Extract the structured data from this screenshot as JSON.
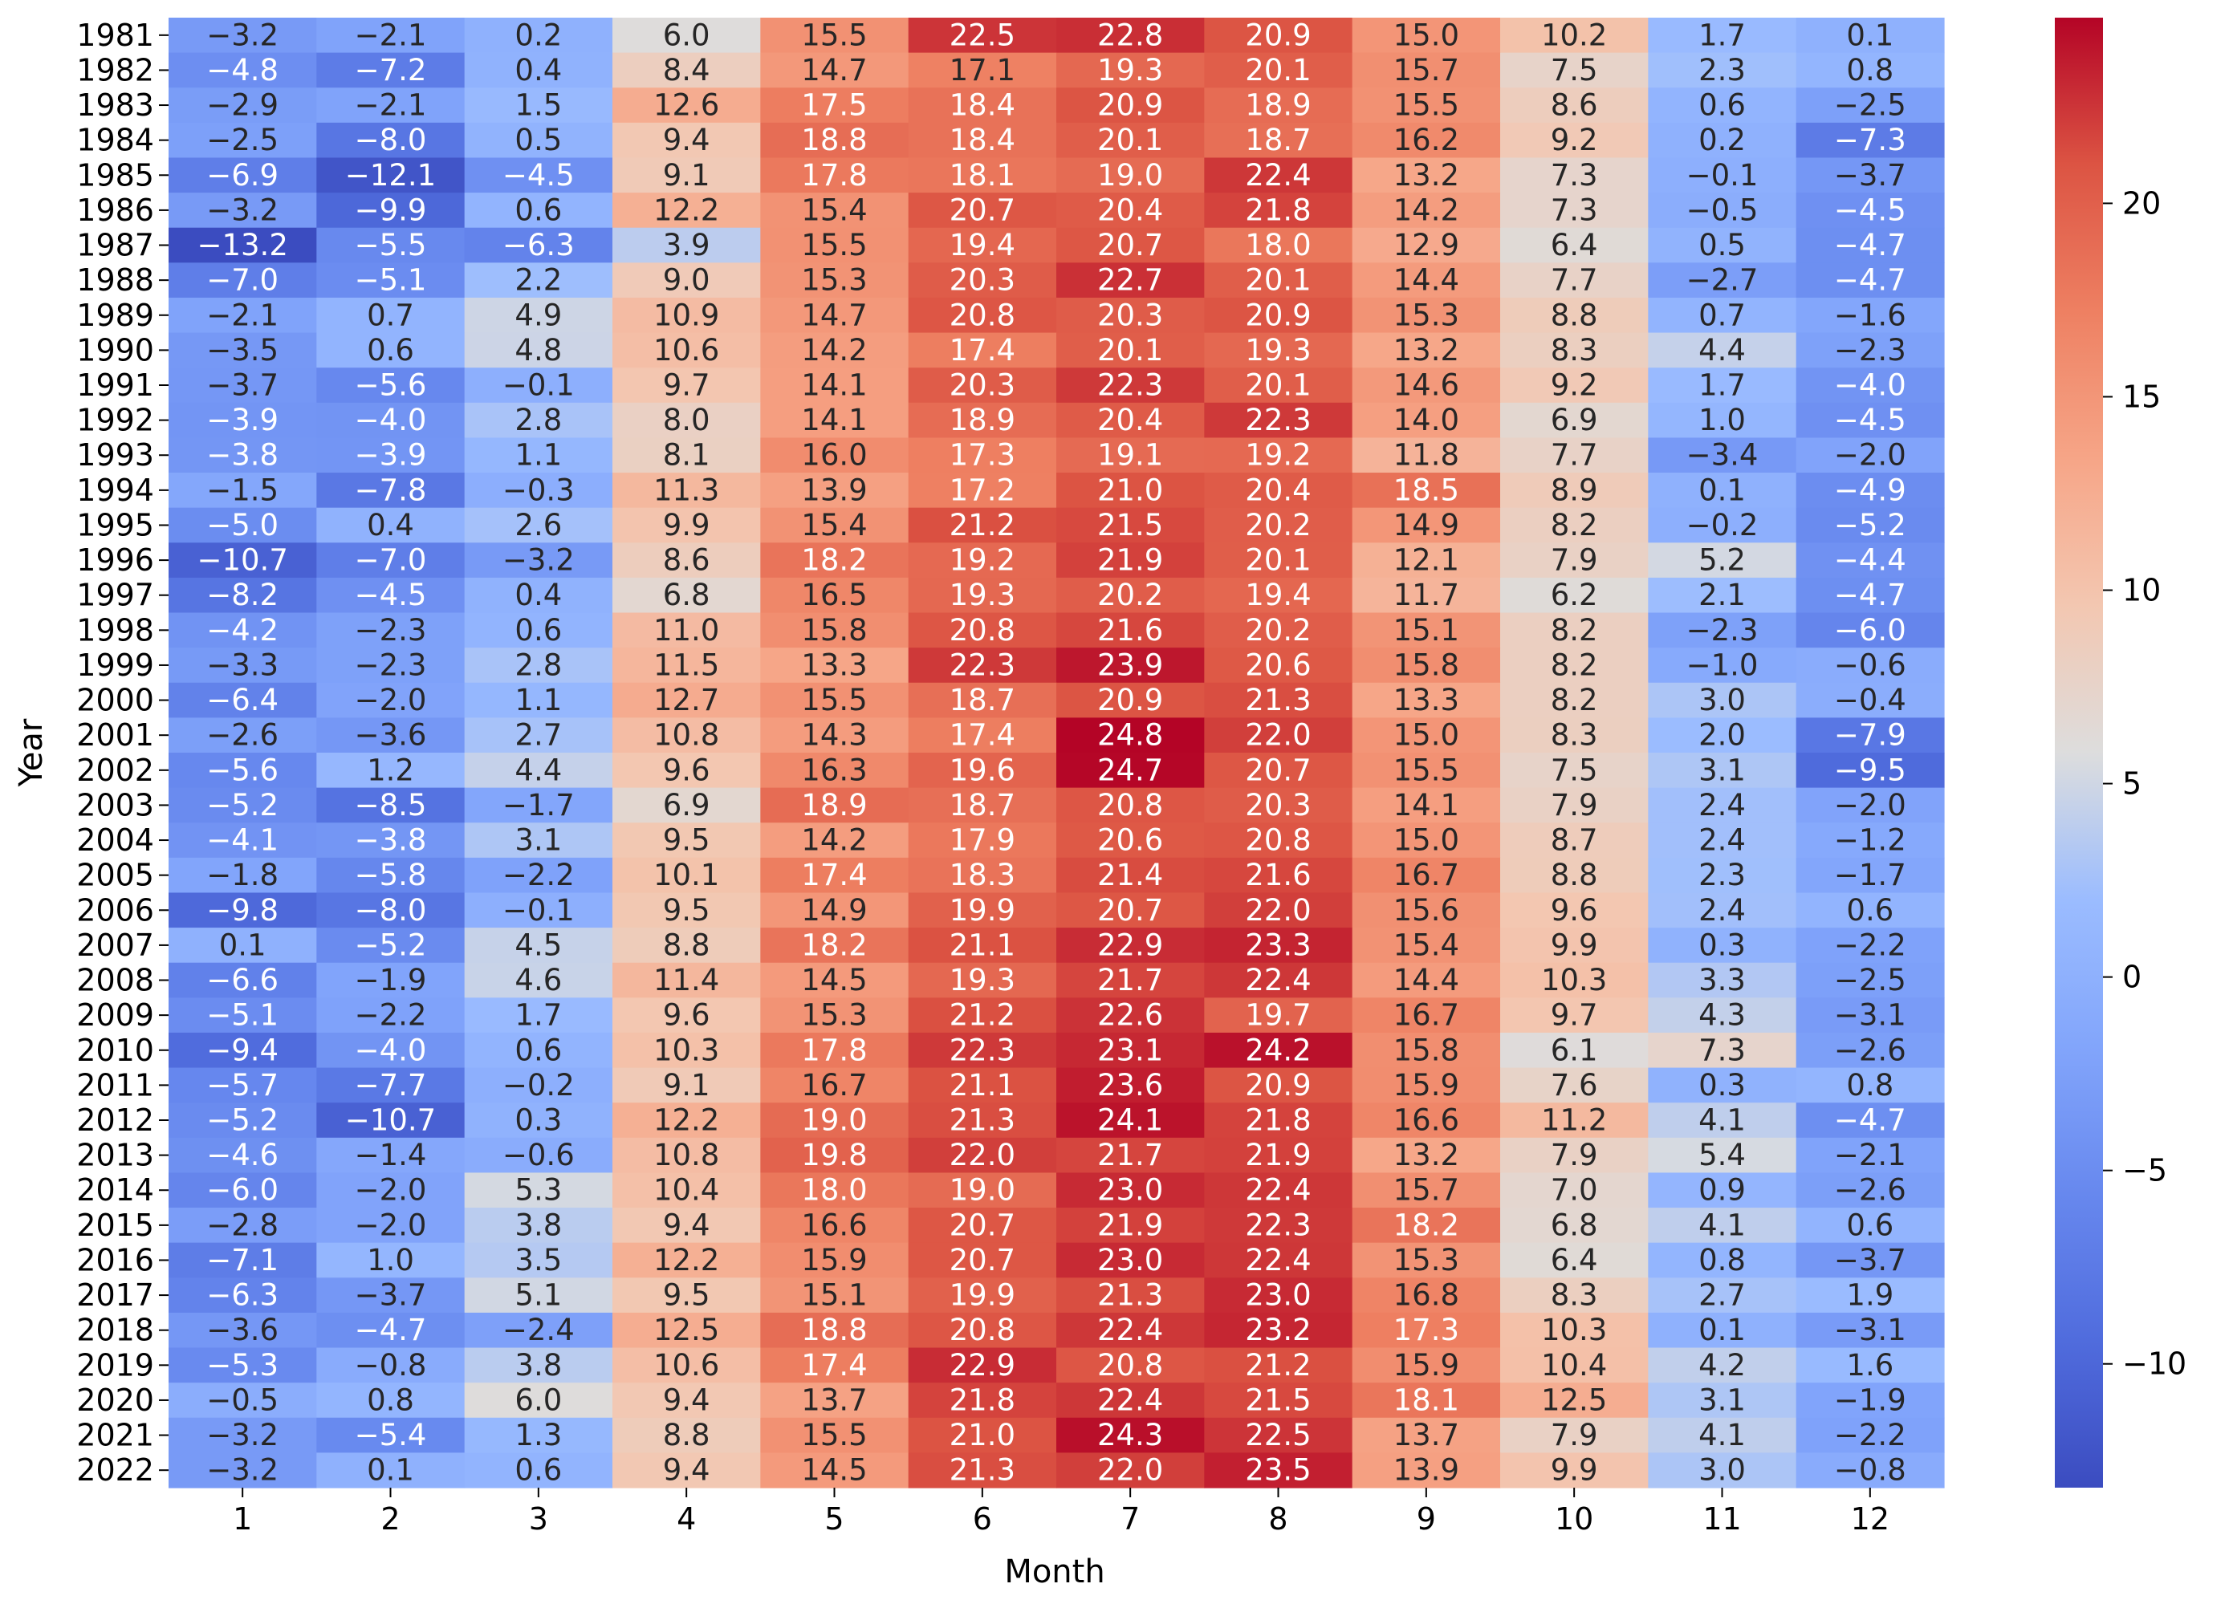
{
  "chart_data": {
    "type": "heatmap",
    "title": "",
    "xlabel": "Month",
    "ylabel": "Year",
    "columns": [
      "1",
      "2",
      "3",
      "4",
      "5",
      "6",
      "7",
      "8",
      "9",
      "10",
      "11",
      "12"
    ],
    "rows": [
      "1981",
      "1982",
      "1983",
      "1984",
      "1985",
      "1986",
      "1987",
      "1988",
      "1989",
      "1990",
      "1991",
      "1992",
      "1993",
      "1994",
      "1995",
      "1996",
      "1997",
      "1998",
      "1999",
      "2000",
      "2001",
      "2002",
      "2003",
      "2004",
      "2005",
      "2006",
      "2007",
      "2008",
      "2009",
      "2010",
      "2011",
      "2012",
      "2013",
      "2014",
      "2015",
      "2016",
      "2017",
      "2018",
      "2019",
      "2020",
      "2021",
      "2022"
    ],
    "values": [
      [
        -3.2,
        -2.1,
        0.2,
        6.0,
        15.5,
        22.5,
        22.8,
        20.9,
        15.0,
        10.2,
        1.7,
        0.1
      ],
      [
        -4.8,
        -7.2,
        0.4,
        8.4,
        14.7,
        17.1,
        19.3,
        20.1,
        15.7,
        7.5,
        2.3,
        0.8
      ],
      [
        -2.9,
        -2.1,
        1.5,
        12.6,
        17.5,
        18.4,
        20.9,
        18.9,
        15.5,
        8.6,
        0.6,
        -2.5
      ],
      [
        -2.5,
        -8.0,
        0.5,
        9.4,
        18.8,
        18.4,
        20.1,
        18.7,
        16.2,
        9.2,
        0.2,
        -7.3
      ],
      [
        -6.9,
        -12.1,
        -4.5,
        9.1,
        17.8,
        18.1,
        19.0,
        22.4,
        13.2,
        7.3,
        -0.1,
        -3.7
      ],
      [
        -3.2,
        -9.9,
        0.6,
        12.2,
        15.4,
        20.7,
        20.4,
        21.8,
        14.2,
        7.3,
        -0.5,
        -4.5
      ],
      [
        -13.2,
        -5.5,
        -6.3,
        3.9,
        15.5,
        19.4,
        20.7,
        18.0,
        12.9,
        6.4,
        0.5,
        -4.7
      ],
      [
        -7.0,
        -5.1,
        2.2,
        9.0,
        15.3,
        20.3,
        22.7,
        20.1,
        14.4,
        7.7,
        -2.7,
        -4.7
      ],
      [
        -2.1,
        0.7,
        4.9,
        10.9,
        14.7,
        20.8,
        20.3,
        20.9,
        15.3,
        8.8,
        0.7,
        -1.6
      ],
      [
        -3.5,
        0.6,
        4.8,
        10.6,
        14.2,
        17.4,
        20.1,
        19.3,
        13.2,
        8.3,
        4.4,
        -2.3
      ],
      [
        -3.7,
        -5.6,
        -0.1,
        9.7,
        14.1,
        20.3,
        22.3,
        20.1,
        14.6,
        9.2,
        1.7,
        -4.0
      ],
      [
        -3.9,
        -4.0,
        2.8,
        8.0,
        14.1,
        18.9,
        20.4,
        22.3,
        14.0,
        6.9,
        1.0,
        -4.5
      ],
      [
        -3.8,
        -3.9,
        1.1,
        8.1,
        16.0,
        17.3,
        19.1,
        19.2,
        11.8,
        7.7,
        -3.4,
        -2.0
      ],
      [
        -1.5,
        -7.8,
        -0.3,
        11.3,
        13.9,
        17.2,
        21.0,
        20.4,
        18.5,
        8.9,
        0.1,
        -4.9
      ],
      [
        -5.0,
        0.4,
        2.6,
        9.9,
        15.4,
        21.2,
        21.5,
        20.2,
        14.9,
        8.2,
        -0.2,
        -5.2
      ],
      [
        -10.7,
        -7.0,
        -3.2,
        8.6,
        18.2,
        19.2,
        21.9,
        20.1,
        12.1,
        7.9,
        5.2,
        -4.4
      ],
      [
        -8.2,
        -4.5,
        0.4,
        6.8,
        16.5,
        19.3,
        20.2,
        19.4,
        11.7,
        6.2,
        2.1,
        -4.7
      ],
      [
        -4.2,
        -2.3,
        0.6,
        11.0,
        15.8,
        20.8,
        21.6,
        20.2,
        15.1,
        8.2,
        -2.3,
        -6.0
      ],
      [
        -3.3,
        -2.3,
        2.8,
        11.5,
        13.3,
        22.3,
        23.9,
        20.6,
        15.8,
        8.2,
        -1.0,
        -0.6
      ],
      [
        -6.4,
        -2.0,
        1.1,
        12.7,
        15.5,
        18.7,
        20.9,
        21.3,
        13.3,
        8.2,
        3.0,
        -0.4
      ],
      [
        -2.6,
        -3.6,
        2.7,
        10.8,
        14.3,
        17.4,
        24.8,
        22.0,
        15.0,
        8.3,
        2.0,
        -7.9
      ],
      [
        -5.6,
        1.2,
        4.4,
        9.6,
        16.3,
        19.6,
        24.7,
        20.7,
        15.5,
        7.5,
        3.1,
        -9.5
      ],
      [
        -5.2,
        -8.5,
        -1.7,
        6.9,
        18.9,
        18.7,
        20.8,
        20.3,
        14.1,
        7.9,
        2.4,
        -2.0
      ],
      [
        -4.1,
        -3.8,
        3.1,
        9.5,
        14.2,
        17.9,
        20.6,
        20.8,
        15.0,
        8.7,
        2.4,
        -1.2
      ],
      [
        -1.8,
        -5.8,
        -2.2,
        10.1,
        17.4,
        18.3,
        21.4,
        21.6,
        16.7,
        8.8,
        2.3,
        -1.7
      ],
      [
        -9.8,
        -8.0,
        -0.1,
        9.5,
        14.9,
        19.9,
        20.7,
        22.0,
        15.6,
        9.6,
        2.4,
        0.6
      ],
      [
        0.1,
        -5.2,
        4.5,
        8.8,
        18.2,
        21.1,
        22.9,
        23.3,
        15.4,
        9.9,
        0.3,
        -2.2
      ],
      [
        -6.6,
        -1.9,
        4.6,
        11.4,
        14.5,
        19.3,
        21.7,
        22.4,
        14.4,
        10.3,
        3.3,
        -2.5
      ],
      [
        -5.1,
        -2.2,
        1.7,
        9.6,
        15.3,
        21.2,
        22.6,
        19.7,
        16.7,
        9.7,
        4.3,
        -3.1
      ],
      [
        -9.4,
        -4.0,
        0.6,
        10.3,
        17.8,
        22.3,
        23.1,
        24.2,
        15.8,
        6.1,
        7.3,
        -2.6
      ],
      [
        -5.7,
        -7.7,
        -0.2,
        9.1,
        16.7,
        21.1,
        23.6,
        20.9,
        15.9,
        7.6,
        0.3,
        0.8
      ],
      [
        -5.2,
        -10.7,
        0.3,
        12.2,
        19.0,
        21.3,
        24.1,
        21.8,
        16.6,
        11.2,
        4.1,
        -4.7
      ],
      [
        -4.6,
        -1.4,
        -0.6,
        10.8,
        19.8,
        22.0,
        21.7,
        21.9,
        13.2,
        7.9,
        5.4,
        -2.1
      ],
      [
        -6.0,
        -2.0,
        5.3,
        10.4,
        18.0,
        19.0,
        23.0,
        22.4,
        15.7,
        7.0,
        0.9,
        -2.6
      ],
      [
        -2.8,
        -2.0,
        3.8,
        9.4,
        16.6,
        20.7,
        21.9,
        22.3,
        18.2,
        6.8,
        4.1,
        0.6
      ],
      [
        -7.1,
        1.0,
        3.5,
        12.2,
        15.9,
        20.7,
        23.0,
        22.4,
        15.3,
        6.4,
        0.8,
        -3.7
      ],
      [
        -6.3,
        -3.7,
        5.1,
        9.5,
        15.1,
        19.9,
        21.3,
        23.0,
        16.8,
        8.3,
        2.7,
        1.9
      ],
      [
        -3.6,
        -4.7,
        -2.4,
        12.5,
        18.8,
        20.8,
        22.4,
        23.2,
        17.3,
        10.3,
        0.1,
        -3.1
      ],
      [
        -5.3,
        -0.8,
        3.8,
        10.6,
        17.4,
        22.9,
        20.8,
        21.2,
        15.9,
        10.4,
        4.2,
        1.6
      ],
      [
        -0.5,
        0.8,
        6.0,
        9.4,
        13.7,
        21.8,
        22.4,
        21.5,
        18.1,
        12.5,
        3.1,
        -1.9
      ],
      [
        -3.2,
        -5.4,
        1.3,
        8.8,
        15.5,
        21.0,
        24.3,
        22.5,
        13.7,
        7.9,
        4.1,
        -2.2
      ],
      [
        -3.2,
        0.1,
        0.6,
        9.4,
        14.5,
        21.3,
        22.0,
        23.5,
        13.9,
        9.9,
        3.0,
        -0.8
      ]
    ],
    "colormap": "coolwarm",
    "vmin": -13.2,
    "vmax": 24.8,
    "annot": true,
    "annot_format": "0.1f",
    "colorbar": {
      "ticks": [
        -10,
        -5,
        0,
        5,
        10,
        15,
        20
      ],
      "tick_labels": [
        "−10",
        "−5",
        "0",
        "5",
        "10",
        "15",
        "20"
      ]
    },
    "grid": false,
    "legend": "colorbar-right"
  }
}
